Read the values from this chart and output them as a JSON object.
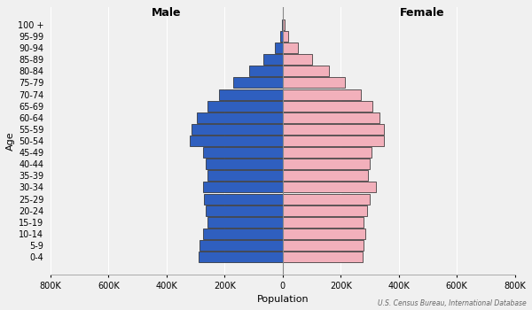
{
  "age_groups": [
    "0-4",
    "5-9",
    "10-14",
    "15-19",
    "20-24",
    "25-29",
    "30-34",
    "35-39",
    "40-44",
    "45-49",
    "50-54",
    "55-59",
    "60-64",
    "65-69",
    "70-74",
    "75-79",
    "80-84",
    "85-89",
    "90-94",
    "95-99",
    "100 +"
  ],
  "male": [
    290000,
    285000,
    275000,
    260000,
    265000,
    270000,
    275000,
    260000,
    265000,
    275000,
    320000,
    315000,
    295000,
    260000,
    220000,
    170000,
    115000,
    65000,
    28000,
    9000,
    2000
  ],
  "female": [
    275000,
    280000,
    285000,
    280000,
    290000,
    300000,
    320000,
    295000,
    300000,
    305000,
    350000,
    350000,
    335000,
    310000,
    270000,
    215000,
    160000,
    100000,
    52000,
    19000,
    6000
  ],
  "male_color": "#2f5fbf",
  "female_color": "#f2b0bb",
  "male_label": "Male",
  "female_label": "Female",
  "xlabel": "Population",
  "ylabel": "Age",
  "xlim": 800000,
  "source": "U.S. Census Bureau, International Database",
  "bg_color": "#f0f0f0",
  "bar_edge_color": "#222222",
  "bar_edge_width": 0.5
}
